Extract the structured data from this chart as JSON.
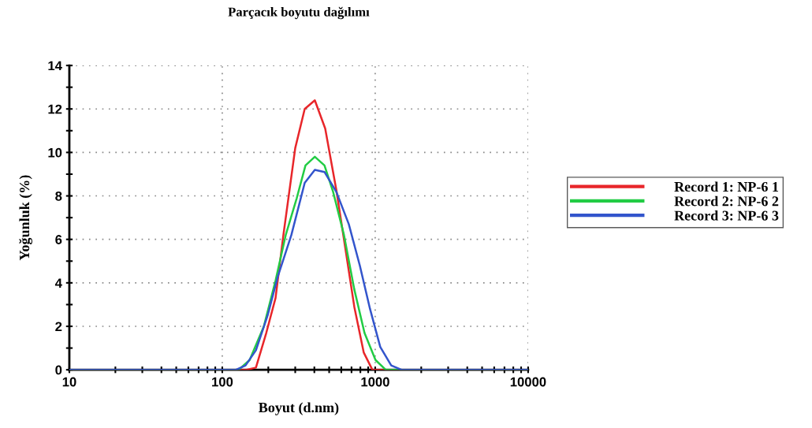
{
  "chart_data": {
    "type": "line",
    "title": "Parçacık boyutu dağılımı",
    "xlabel": "Boyut (d.nm)",
    "ylabel": "Yoğunluk (%)",
    "log": "x",
    "xlim": [
      10,
      10000
    ],
    "ylim": [
      0,
      14
    ],
    "xticks": [
      10,
      {
        "value": 20,
        "label": null
      },
      {
        "value": 30,
        "label": null
      },
      {
        "value": 40,
        "label": null
      },
      {
        "value": 50,
        "label": null
      },
      {
        "value": 60,
        "label": null
      },
      {
        "value": 70,
        "label": null
      },
      {
        "value": 80,
        "label": null
      },
      {
        "value": 90,
        "label": null
      },
      100,
      {
        "value": 200,
        "label": null
      },
      {
        "value": 300,
        "label": null
      },
      {
        "value": 400,
        "label": null
      },
      {
        "value": 500,
        "label": null
      },
      {
        "value": 600,
        "label": null
      },
      {
        "value": 700,
        "label": null
      },
      {
        "value": 800,
        "label": null
      },
      {
        "value": 900,
        "label": null
      },
      1000,
      {
        "value": 2000,
        "label": null
      },
      {
        "value": 3000,
        "label": null
      },
      {
        "value": 4000,
        "label": null
      },
      {
        "value": 5000,
        "label": null
      },
      {
        "value": 6000,
        "label": null
      },
      {
        "value": 7000,
        "label": null
      },
      {
        "value": 8000,
        "label": null
      },
      {
        "value": 9000,
        "label": null
      },
      10000
    ],
    "yticks": [
      0,
      {
        "value": 1,
        "label": null
      },
      2,
      {
        "value": 3,
        "label": null
      },
      4,
      {
        "value": 5,
        "label": null
      },
      6,
      {
        "value": 7,
        "label": null
      },
      8,
      {
        "value": 9,
        "label": null
      },
      10,
      {
        "value": 11,
        "label": null
      },
      12,
      {
        "value": 13,
        "label": null
      },
      14
    ],
    "grid": true,
    "legend": "right",
    "line_style": "solid",
    "marker": "none",
    "series": [
      {
        "name": "Record 1: NP-6 1",
        "color": "#e8262a",
        "x": [
          10,
          144,
          166,
          194,
          223,
          251,
          300,
          346,
          403,
          471,
          556,
          625,
          730,
          841,
          958,
          10000
        ],
        "values": [
          0,
          0,
          0.1,
          1.7,
          3.3,
          6.2,
          10.2,
          12.0,
          12.4,
          11.1,
          8.3,
          6.0,
          2.9,
          0.8,
          0,
          0
        ]
      },
      {
        "name": "Record 2: NP-6 2",
        "color": "#22cc44",
        "x": [
          10,
          128,
          151,
          187,
          223,
          260,
          307,
          350,
          403,
          466,
          530,
          625,
          730,
          851,
          1005,
          1172,
          10000
        ],
        "values": [
          0,
          0,
          0.45,
          2.0,
          4.1,
          6.2,
          7.9,
          9.4,
          9.8,
          9.4,
          8.2,
          6.2,
          3.7,
          1.7,
          0.45,
          0,
          0
        ]
      },
      {
        "name": "Record 3: NP-6 3",
        "color": "#3355cc",
        "x": [
          10,
          123,
          142,
          166,
          198,
          231,
          283,
          346,
          403,
          466,
          556,
          672,
          793,
          925,
          1079,
          1273,
          1486,
          10000
        ],
        "values": [
          0,
          0,
          0.2,
          0.9,
          2.5,
          4.3,
          6.2,
          8.6,
          9.2,
          9.1,
          8.2,
          6.7,
          4.8,
          2.8,
          1.05,
          0.2,
          0,
          0
        ]
      }
    ]
  }
}
